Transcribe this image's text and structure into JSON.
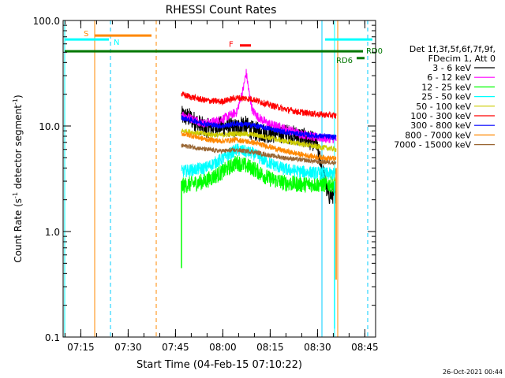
{
  "chart_data": {
    "type": "line",
    "title": "RHESSI Count Rates",
    "xlabel": "Start Time (04-Feb-15 07:10:22)",
    "ylabel_main": "Count Rate (s",
    "ylabel_sup1": "-1",
    "ylabel_mid": " detector segment",
    "ylabel_sup2": "-1",
    "ylabel_end": ")",
    "x_unit": "minutes after 07:10:22",
    "xlim": [
      0,
      99
    ],
    "ylim": [
      0.1,
      100
    ],
    "y_scale": "log",
    "x_ticks": [
      {
        "t": 5.6,
        "label": "07:15"
      },
      {
        "t": 20.6,
        "label": "07:30"
      },
      {
        "t": 35.6,
        "label": "07:45"
      },
      {
        "t": 50.6,
        "label": "08:00"
      },
      {
        "t": 65.6,
        "label": "08:15"
      },
      {
        "t": 80.6,
        "label": "08:30"
      },
      {
        "t": 95.6,
        "label": "08:45"
      }
    ],
    "y_ticks": [
      {
        "v": 0.1,
        "label": "0.1"
      },
      {
        "v": 1,
        "label": "1.0"
      },
      {
        "v": 10,
        "label": "10.0"
      },
      {
        "v": 100,
        "label": "100.0"
      }
    ],
    "legend": {
      "position": "right",
      "header": [
        "Det 1f,3f,5f,6f,7f,9f,",
        "FDecim 1, Att 0"
      ],
      "entries": [
        {
          "label": "3 - 6 keV",
          "color": "#000000"
        },
        {
          "label": "6 - 12 keV",
          "color": "#ff00ff"
        },
        {
          "label": "12 - 25 keV",
          "color": "#00ff00"
        },
        {
          "label": "25 - 50 keV",
          "color": "#00ffff"
        },
        {
          "label": "50 - 100 keV",
          "color": "#cccc00"
        },
        {
          "label": "100 - 300 keV",
          "color": "#ff0000"
        },
        {
          "label": "300 - 800 keV",
          "color": "#0000ff"
        },
        {
          "label": "800 - 7000 keV",
          "color": "#ff8800"
        },
        {
          "label": "7000 - 15000 keV",
          "color": "#996633"
        }
      ]
    },
    "data_interval": [
      37.5,
      86.5
    ],
    "series": [
      {
        "name": "3 - 6 keV",
        "color": "#000000",
        "x": [
          37.5,
          40,
          45,
          50,
          55,
          57,
          60,
          65,
          70,
          75,
          80,
          82,
          84,
          86.5
        ],
        "y": [
          12.5,
          12.0,
          9.5,
          10.0,
          9.5,
          10.5,
          9.0,
          8.5,
          8.5,
          8.0,
          7.0,
          4.0,
          2.2,
          2.3
        ],
        "noise": 0.22
      },
      {
        "name": "6 - 12 keV",
        "color": "#ff00ff",
        "x": [
          37.5,
          40,
          45,
          50,
          55,
          57,
          58,
          59,
          60,
          62,
          65,
          70,
          75,
          80,
          86.5
        ],
        "y": [
          13.0,
          12.0,
          10.5,
          11.5,
          13.5,
          22.0,
          32.0,
          20.0,
          14.0,
          12.0,
          10.5,
          9.5,
          8.5,
          7.8,
          7.5
        ],
        "noise": 0.1
      },
      {
        "name": "12 - 25 keV",
        "color": "#00ff00",
        "x": [
          37.5,
          40,
          45,
          50,
          55,
          60,
          65,
          70,
          75,
          80,
          86.5
        ],
        "y": [
          2.7,
          2.8,
          3.0,
          3.6,
          4.5,
          4.0,
          3.2,
          2.9,
          2.8,
          2.8,
          2.8
        ],
        "noise": 0.18
      },
      {
        "name": "25 - 50 keV",
        "color": "#00ffff",
        "x": [
          37.5,
          40,
          45,
          50,
          55,
          60,
          65,
          70,
          75,
          80,
          86.5
        ],
        "y": [
          3.7,
          3.8,
          4.0,
          4.8,
          6.0,
          5.5,
          4.5,
          3.9,
          3.7,
          3.6,
          3.5
        ],
        "noise": 0.14
      },
      {
        "name": "50 - 100 keV",
        "color": "#cccc00",
        "x": [
          37.5,
          40,
          45,
          50,
          55,
          60,
          65,
          70,
          75,
          80,
          86.5
        ],
        "y": [
          9.0,
          8.8,
          8.4,
          8.2,
          8.5,
          8.3,
          7.8,
          7.2,
          6.8,
          6.4,
          6.0
        ],
        "noise": 0.06
      },
      {
        "name": "100 - 300 keV",
        "color": "#ff0000",
        "x": [
          37.5,
          40,
          45,
          50,
          55,
          60,
          65,
          70,
          75,
          80,
          86.5
        ],
        "y": [
          20.0,
          19.0,
          17.5,
          17.0,
          18.5,
          18.0,
          16.0,
          14.5,
          13.5,
          13.0,
          12.5
        ],
        "noise": 0.07
      },
      {
        "name": "300 - 800 keV",
        "color": "#0000ff",
        "x": [
          37.5,
          40,
          45,
          50,
          55,
          60,
          65,
          70,
          75,
          80,
          86.5
        ],
        "y": [
          12.0,
          11.5,
          10.5,
          10.0,
          10.5,
          10.2,
          9.5,
          8.8,
          8.4,
          8.1,
          7.8
        ],
        "noise": 0.06
      },
      {
        "name": "800 - 7000 keV",
        "color": "#ff8800",
        "x": [
          37.5,
          40,
          45,
          50,
          55,
          60,
          65,
          70,
          75,
          80,
          86.5
        ],
        "y": [
          8.5,
          8.2,
          7.5,
          7.2,
          7.4,
          7.0,
          6.4,
          5.8,
          5.4,
          5.1,
          4.9
        ],
        "noise": 0.06
      },
      {
        "name": "7000 - 15000 keV",
        "color": "#996633",
        "x": [
          37.5,
          40,
          45,
          50,
          55,
          60,
          65,
          70,
          75,
          80,
          86.5
        ],
        "y": [
          6.5,
          6.4,
          6.0,
          5.8,
          5.9,
          5.7,
          5.3,
          5.0,
          4.8,
          4.6,
          4.5
        ],
        "noise": 0.05
      }
    ],
    "vertical_markers": [
      {
        "t": 10.0,
        "color": "#ff8800",
        "style": "solid"
      },
      {
        "t": 15.0,
        "color": "#00ccff",
        "style": "dashed"
      },
      {
        "t": 29.5,
        "color": "#ff8800",
        "style": "dashed"
      },
      {
        "t": 87.0,
        "color": "#ff8800",
        "style": "solid"
      },
      {
        "t": 0.5,
        "color": "#00ffff",
        "style": "solid"
      },
      {
        "t": 86.0,
        "color": "#00ffff",
        "style": "solid"
      },
      {
        "t": 82.0,
        "color": "#00ccff",
        "style": "solid"
      },
      {
        "t": 96.5,
        "color": "#00ccff",
        "style": "dashed"
      }
    ],
    "flag_bars": [
      {
        "label": "S",
        "color": "#ff8800",
        "t0": 10.0,
        "t1": 28.0,
        "level": 72
      },
      {
        "label": "N",
        "color": "#00ffff",
        "t0": 0.5,
        "t1": 14.5,
        "level": 66
      },
      {
        "label": "N",
        "color": "#00ffff",
        "t0": 83.0,
        "t1": 98.0,
        "level": 66,
        "hide_label": true
      },
      {
        "label": "F",
        "color": "#ff0000",
        "t0": 56.0,
        "t1": 59.5,
        "level": 58
      },
      {
        "label": "RD0",
        "color": "#007700",
        "t0": 0.5,
        "t1": 95.0,
        "level": 51
      },
      {
        "label": "RD6",
        "color": "#007700",
        "t0": 93.0,
        "t1": 95.5,
        "level": 44
      }
    ],
    "artifacts": [
      {
        "t": 37.5,
        "y_from": 0.45,
        "y_to": 3.0,
        "color": "#00ff00"
      },
      {
        "t": 86.5,
        "y_from": 0.35,
        "y_to": 4.0,
        "color": "#ff8800"
      },
      {
        "t": 86.0,
        "y_from": 0.12,
        "y_to": 3.0,
        "color": "#00ffff"
      }
    ]
  },
  "footer": {
    "timestamp": "26-Oct-2021 00:44"
  }
}
